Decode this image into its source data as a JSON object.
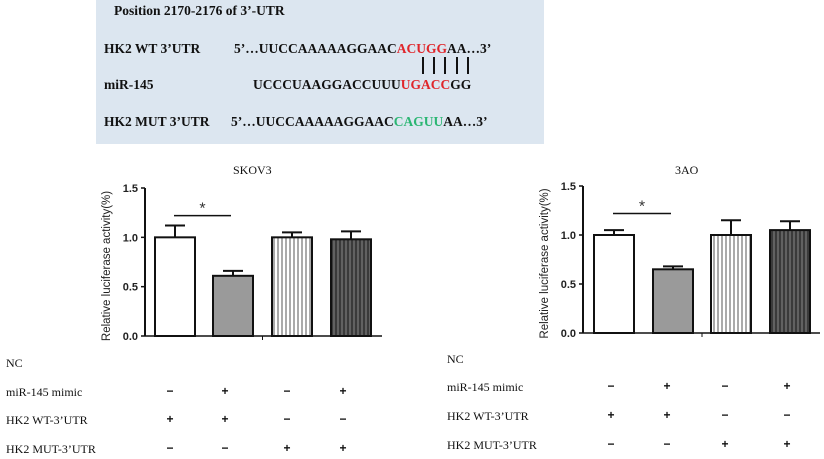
{
  "sequence_panel": {
    "title": "Position 2170-2176 of 3’-UTR",
    "wt": {
      "label": "HK2 WT 3’UTR",
      "prefix": "5’…UUCCAAAAAGGAAC",
      "highlight": "ACUGG",
      "suffix": "AA…3’",
      "highlight_color": "#e0262b"
    },
    "mir": {
      "label": "miR-145",
      "prefix": "UCCCUAAGGACCUUU",
      "highlight": "UGACC",
      "suffix": "GG",
      "highlight_color": "#e0262b"
    },
    "mut": {
      "label": "HK2 MUT 3’UTR",
      "prefix": "5’…UUCCAAAAAGGAAC",
      "highlight": "CAGUU",
      "suffix": "AA…3’",
      "highlight_color": "#2bb673"
    },
    "pair_lines": 5
  },
  "chart_data": [
    {
      "type": "bar",
      "title": "SKOV3",
      "xlabel": "",
      "ylabel": "Relative luciferase activity(%)",
      "ylim": [
        0,
        1.5
      ],
      "yticks": [
        "0.0",
        "0.5",
        "1.0",
        "1.5"
      ],
      "grid": false,
      "categories": [
        "WT + NC",
        "WT + miR-145 mimic",
        "MUT + NC",
        "MUT + miR-145 mimic"
      ],
      "values": [
        1.0,
        0.61,
        1.0,
        0.98
      ],
      "errors": [
        0.12,
        0.05,
        0.05,
        0.08
      ],
      "bar_styles": [
        "white",
        "gray",
        "white-striped",
        "dark-striped"
      ],
      "annotations": [
        {
          "text": "*",
          "between": [
            0,
            1
          ]
        }
      ]
    },
    {
      "type": "bar",
      "title": "3AO",
      "xlabel": "",
      "ylabel": "Relative luciferase activity(%)",
      "ylim": [
        0,
        1.5
      ],
      "yticks": [
        "0.0",
        "0.5",
        "1.0",
        "1.5"
      ],
      "grid": false,
      "categories": [
        "WT + NC",
        "WT + miR-145 mimic",
        "MUT + NC",
        "MUT + miR-145 mimic"
      ],
      "values": [
        1.0,
        0.65,
        1.0,
        1.05
      ],
      "errors": [
        0.05,
        0.03,
        0.15,
        0.09
      ],
      "bar_styles": [
        "white",
        "gray",
        "white-striped",
        "dark-striped"
      ],
      "annotations": [
        {
          "text": "*",
          "between": [
            0,
            1
          ]
        }
      ]
    }
  ],
  "conditions_tables": [
    {
      "rows": [
        {
          "label": "NC",
          "values": [
            "",
            "",
            "",
            ""
          ]
        },
        {
          "label": "miR-145 mimic",
          "values": [
            "−",
            "+",
            "−",
            "+"
          ]
        },
        {
          "label": "HK2 WT-3’UTR",
          "values": [
            "+",
            "+",
            "−",
            "−"
          ]
        },
        {
          "label": "HK2 MUT-3’UTR",
          "values": [
            "−",
            "−",
            "+",
            "+"
          ]
        }
      ]
    },
    {
      "rows": [
        {
          "label": "NC",
          "values": [
            "",
            "",
            "",
            ""
          ]
        },
        {
          "label": "miR-145 mimic",
          "values": [
            "−",
            "+",
            "−",
            "+"
          ]
        },
        {
          "label": "HK2 WT-3’UTR",
          "values": [
            "+",
            "+",
            "−",
            "−"
          ]
        },
        {
          "label": "HK2 MUT-3’UTR",
          "values": [
            "−",
            "−",
            "+",
            "+"
          ]
        }
      ]
    }
  ],
  "colors": {
    "seq_bg": "#dce6f0",
    "bar_gray": "#9a9a9a",
    "bar_dark": "#3a3a3a",
    "red": "#e0262b",
    "green": "#2bb673"
  }
}
